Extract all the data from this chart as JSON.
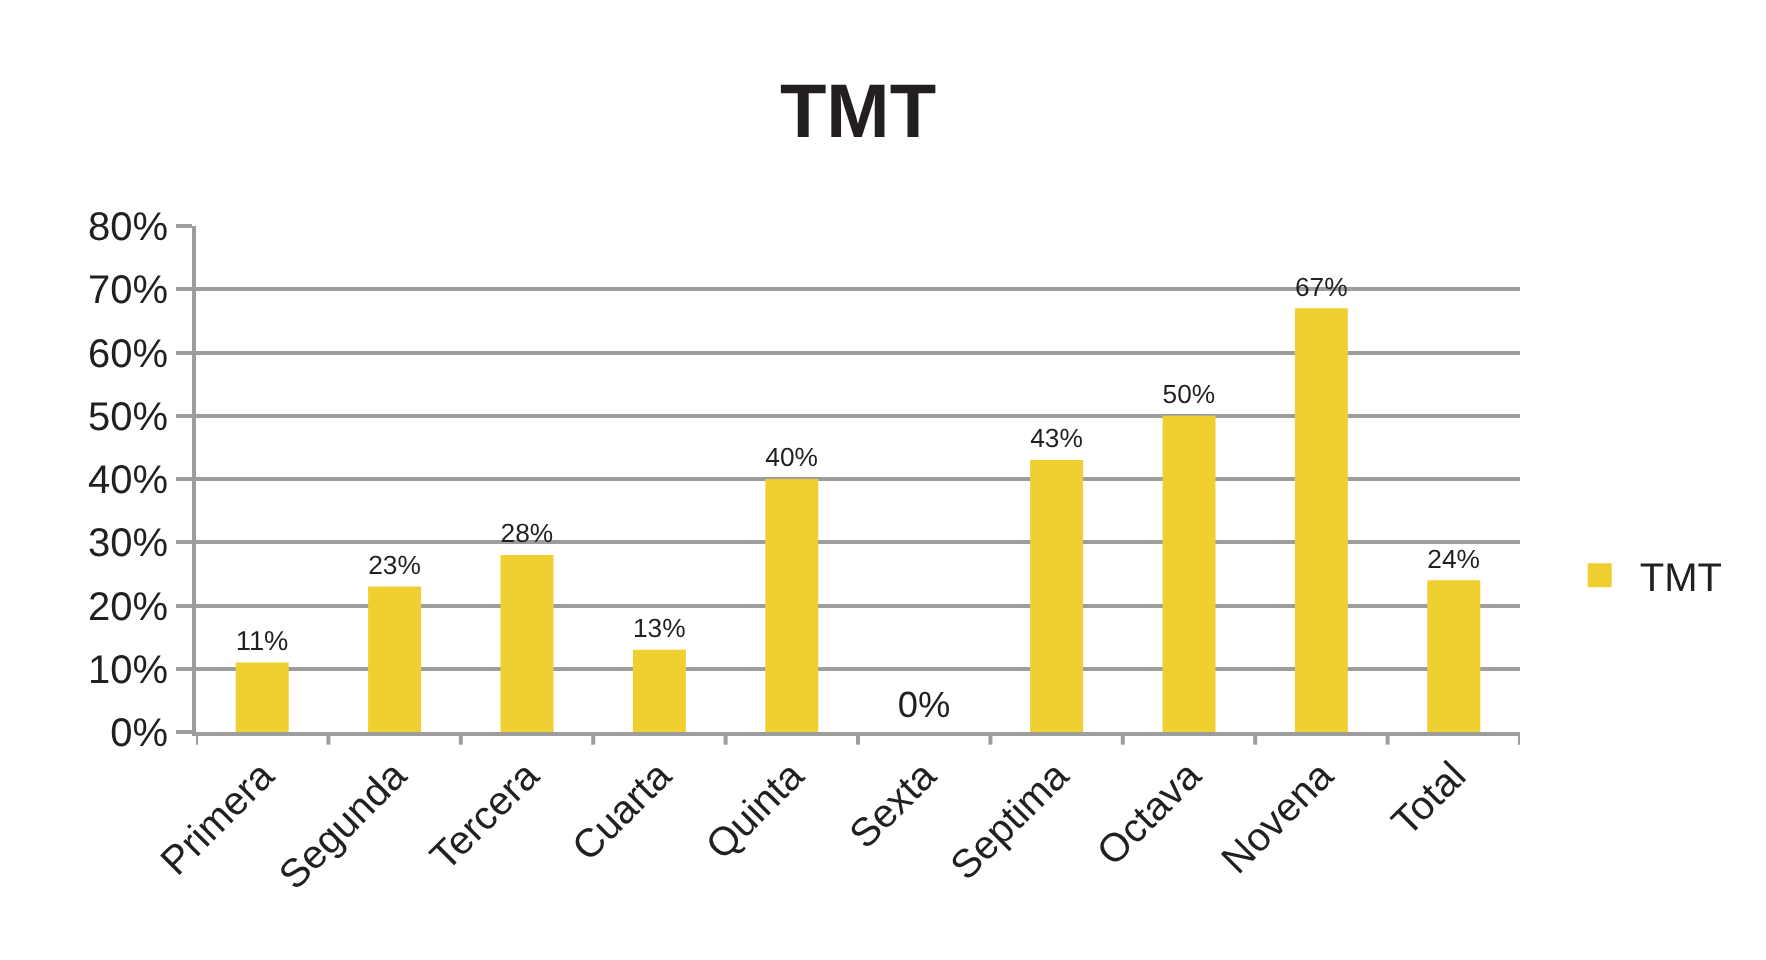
{
  "chart_data": {
    "type": "bar",
    "title": "TMT",
    "categories": [
      "Primera",
      "Segunda",
      "Tercera",
      "Cuarta",
      "Quinta",
      "Sexta",
      "Septima",
      "Octava",
      "Novena",
      "Total"
    ],
    "series": [
      {
        "name": "TMT",
        "color": "#efd030",
        "values": [
          11,
          23,
          28,
          13,
          40,
          0,
          43,
          50,
          67,
          24
        ],
        "value_labels": [
          "11%",
          "23%",
          "28%",
          "13%",
          "40%",
          "0%",
          "43%",
          "50%",
          "67%",
          "24%"
        ]
      }
    ],
    "ylim": [
      0,
      80
    ],
    "yticks": [
      {
        "value": 0,
        "label": "0%"
      },
      {
        "value": 10,
        "label": "10%"
      },
      {
        "value": 20,
        "label": "20%"
      },
      {
        "value": 30,
        "label": "30%"
      },
      {
        "value": 40,
        "label": "40%"
      },
      {
        "value": 50,
        "label": "50%"
      },
      {
        "value": 60,
        "label": "60%"
      },
      {
        "value": 70,
        "label": "70%"
      },
      {
        "value": 80,
        "label": "80%"
      }
    ],
    "grid": "y",
    "legend": "right"
  }
}
